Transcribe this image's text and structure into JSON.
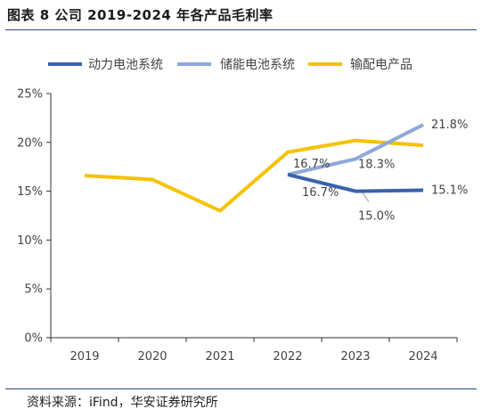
{
  "header": {
    "title": "图表 8 公司 2019-2024 年各产品毛利率"
  },
  "footer": {
    "source": "资料来源：iFind，华安证券研究所"
  },
  "chart_data": {
    "type": "line",
    "categories": [
      "2019",
      "2020",
      "2021",
      "2022",
      "2023",
      "2024"
    ],
    "ylim": [
      0,
      25
    ],
    "yticks": [
      0,
      5,
      10,
      15,
      20,
      25
    ],
    "ytick_labels": [
      "0%",
      "5%",
      "10%",
      "15%",
      "20%",
      "25%"
    ],
    "grid": false,
    "legend_position": "top",
    "series": [
      {
        "name": "动力电池系统",
        "color": "#3a62ad",
        "values": [
          null,
          null,
          null,
          16.7,
          15.0,
          15.1
        ],
        "labels": [
          null,
          null,
          null,
          "16.7%",
          "15.0%",
          "15.1%"
        ]
      },
      {
        "name": "储能电池系统",
        "color": "#8fa8da",
        "values": [
          null,
          null,
          null,
          16.7,
          18.3,
          21.8
        ],
        "labels": [
          null,
          null,
          null,
          "16.7%",
          "18.3%",
          "21.8%"
        ]
      },
      {
        "name": "输配电产品",
        "color": "#f5c200",
        "values": [
          16.6,
          16.2,
          13.0,
          19.0,
          20.2,
          19.7
        ],
        "labels": [
          null,
          null,
          null,
          null,
          null,
          null
        ]
      }
    ]
  }
}
